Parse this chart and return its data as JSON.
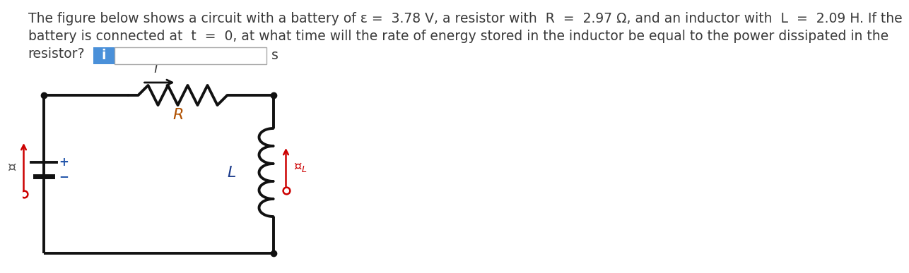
{
  "text_line1": "The figure below shows a circuit with a battery of ε =  3.78 V, a resistor with  R  =  2.97 Ω, and an inductor with  L  =  2.09 H. If the",
  "text_line2": "battery is connected at  t  =  0, at what time will the rate of energy stored in the inductor be equal to the power dissipated in the",
  "text_line3": "resistor?",
  "unit_s": "s",
  "info_box_color": "#4a90d9",
  "text_color": "#3a3a3a",
  "font_size": 13.5,
  "bg_color": "#ffffff",
  "circuit_line_color": "#111111",
  "resistor_color": "#111111",
  "inductor_color": "#111111",
  "label_R_color": "#b05000",
  "label_L_color": "#1a3a8a",
  "arrow_color": "#111111",
  "red_color": "#cc0000"
}
